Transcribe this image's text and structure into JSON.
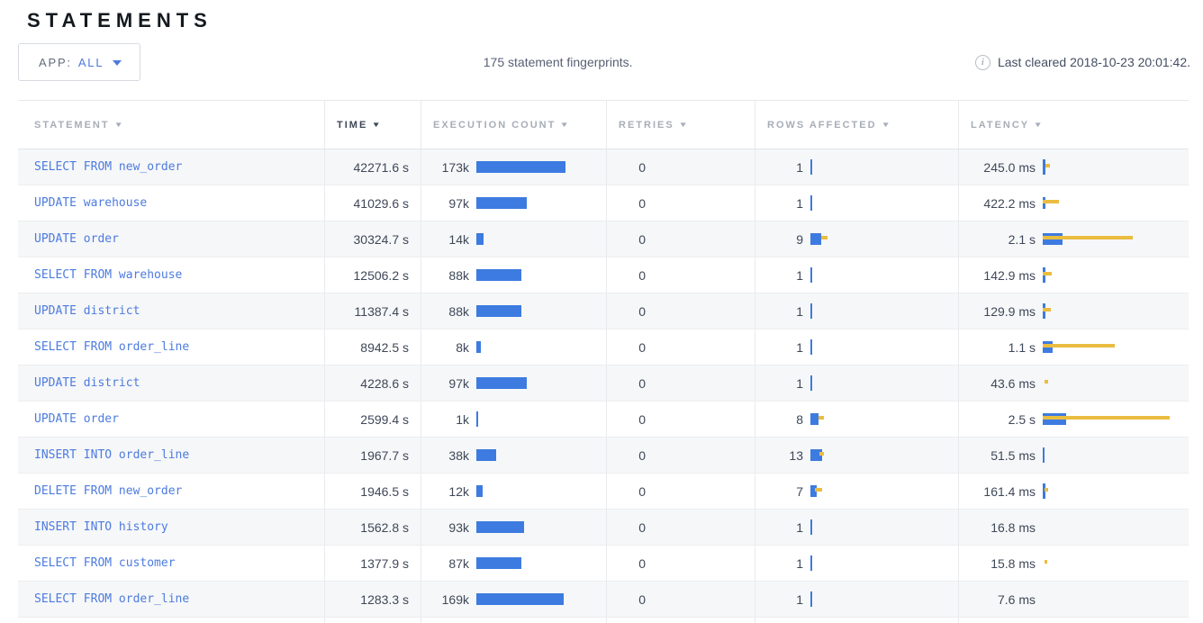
{
  "page": {
    "title": "STATEMENTS"
  },
  "toolbar": {
    "app_filter": {
      "label": "APP:",
      "value": "ALL",
      "chevron_icon": "chevron-down"
    },
    "summary": "175 statement fingerprints.",
    "last_cleared": "Last cleared 2018-10-23 20:01:42.",
    "info_icon_glyph": "i"
  },
  "colors": {
    "bar_blue": "#3d7be0",
    "bar_yellow": "#eabd41",
    "link_blue": "#4c7be0"
  },
  "table": {
    "sort_arrow": "▼",
    "sorted_column": "TIME",
    "columns": [
      {
        "label": "STATEMENT"
      },
      {
        "label": "TIME"
      },
      {
        "label": "EXECUTION COUNT"
      },
      {
        "label": "RETRIES"
      },
      {
        "label": "ROWS AFFECTED"
      },
      {
        "label": "LATENCY"
      }
    ],
    "rows": [
      {
        "statement": "SELECT FROM new_order",
        "time": "42271.6 s",
        "exec_count": "173k",
        "exec_bar": 99,
        "retries": "0",
        "rows_affected": "1",
        "rows_bar": [
          1.5,
          0,
          0
        ],
        "latency": "245.0 ms",
        "lat_bar": [
          2.5,
          5,
          3
        ]
      },
      {
        "statement": "UPDATE warehouse",
        "time": "41029.6 s",
        "exec_count": "97k",
        "exec_bar": 56,
        "retries": "0",
        "rows_affected": "1",
        "rows_bar": [
          1.5,
          0,
          0
        ],
        "latency": "422.2 ms",
        "lat_bar": [
          3,
          18,
          0
        ]
      },
      {
        "statement": "UPDATE order",
        "time": "30324.7 s",
        "exec_count": "14k",
        "exec_bar": 8,
        "retries": "0",
        "rows_affected": "9",
        "rows_bar": [
          12,
          7,
          12
        ],
        "latency": "2.1 s",
        "lat_bar": [
          22,
          100,
          0
        ]
      },
      {
        "statement": "SELECT FROM warehouse",
        "time": "12506.2 s",
        "exec_count": "88k",
        "exec_bar": 50,
        "retries": "0",
        "rows_affected": "1",
        "rows_bar": [
          1.5,
          0,
          0
        ],
        "latency": "142.9 ms",
        "lat_bar": [
          2.5,
          10,
          0
        ]
      },
      {
        "statement": "UPDATE district",
        "time": "11387.4 s",
        "exec_count": "88k",
        "exec_bar": 50,
        "retries": "0",
        "rows_affected": "1",
        "rows_bar": [
          1.5,
          0,
          0
        ],
        "latency": "129.9 ms",
        "lat_bar": [
          2.5,
          9,
          0
        ]
      },
      {
        "statement": "SELECT FROM order_line",
        "time": "8942.5 s",
        "exec_count": "8k",
        "exec_bar": 5,
        "retries": "0",
        "rows_affected": "1",
        "rows_bar": [
          1.5,
          0,
          0
        ],
        "latency": "1.1 s",
        "lat_bar": [
          11,
          80,
          0
        ]
      },
      {
        "statement": "UPDATE district",
        "time": "4228.6 s",
        "exec_count": "97k",
        "exec_bar": 56,
        "retries": "0",
        "rows_affected": "1",
        "rows_bar": [
          1.5,
          0,
          0
        ],
        "latency": "43.6 ms",
        "lat_bar": [
          0,
          4,
          2
        ]
      },
      {
        "statement": "UPDATE order",
        "time": "2599.4 s",
        "exec_count": "1k",
        "exec_bar": 1.5,
        "retries": "0",
        "rows_affected": "8",
        "rows_bar": [
          9,
          6,
          9
        ],
        "latency": "2.5 s",
        "lat_bar": [
          26,
          141,
          0
        ]
      },
      {
        "statement": "INSERT INTO order_line",
        "time": "1967.7 s",
        "exec_count": "38k",
        "exec_bar": 22,
        "retries": "0",
        "rows_affected": "13",
        "rows_bar": [
          13,
          5,
          10
        ],
        "latency": "51.5 ms",
        "lat_bar": [
          1.5,
          0,
          0
        ]
      },
      {
        "statement": "DELETE FROM new_order",
        "time": "1946.5 s",
        "exec_count": "12k",
        "exec_bar": 7,
        "retries": "0",
        "rows_affected": "7",
        "rows_bar": [
          7,
          8,
          5
        ],
        "latency": "161.4 ms",
        "lat_bar": [
          2.5,
          4,
          2
        ]
      },
      {
        "statement": "INSERT INTO history",
        "time": "1562.8 s",
        "exec_count": "93k",
        "exec_bar": 53,
        "retries": "0",
        "rows_affected": "1",
        "rows_bar": [
          1.5,
          0,
          0
        ],
        "latency": "16.8 ms",
        "lat_bar": [
          0,
          0,
          0
        ]
      },
      {
        "statement": "SELECT FROM customer",
        "time": "1377.9 s",
        "exec_count": "87k",
        "exec_bar": 50,
        "retries": "0",
        "rows_affected": "1",
        "rows_bar": [
          1.5,
          0,
          0
        ],
        "latency": "15.8 ms",
        "lat_bar": [
          0,
          3,
          2
        ]
      },
      {
        "statement": "SELECT FROM order_line",
        "time": "1283.3 s",
        "exec_count": "169k",
        "exec_bar": 97,
        "retries": "0",
        "rows_affected": "1",
        "rows_bar": [
          1.5,
          0,
          0
        ],
        "latency": "7.6 ms",
        "lat_bar": [
          0,
          0,
          0
        ]
      }
    ]
  }
}
